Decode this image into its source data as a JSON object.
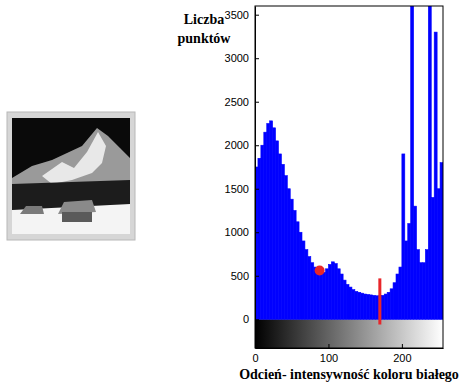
{
  "chart_data": {
    "type": "histogram",
    "xlabel": "Odcień- intensywność koloru białego",
    "ylabel": [
      "Liczba",
      "punktów"
    ],
    "color": "#0000ff",
    "bins": [
      0,
      4,
      8,
      12,
      16,
      20,
      24,
      28,
      32,
      36,
      40,
      44,
      48,
      52,
      56,
      60,
      64,
      68,
      72,
      76,
      80,
      84,
      88,
      92,
      96,
      100,
      104,
      108,
      112,
      116,
      120,
      124,
      128,
      132,
      136,
      140,
      144,
      148,
      152,
      156,
      160,
      164,
      168,
      172,
      176,
      180,
      184,
      188,
      192,
      196,
      200,
      204,
      208,
      212,
      216,
      220,
      224,
      228,
      232,
      236,
      240,
      244,
      248,
      252,
      256
    ],
    "values": [
      1750,
      1850,
      2000,
      2150,
      2250,
      2280,
      2200,
      2050,
      1900,
      1780,
      1650,
      1500,
      1380,
      1250,
      1120,
      1000,
      900,
      800,
      720,
      650,
      600,
      560,
      530,
      540,
      580,
      630,
      660,
      640,
      580,
      520,
      450,
      400,
      370,
      340,
      320,
      310,
      300,
      290,
      285,
      280,
      275,
      270,
      270,
      275,
      290,
      310,
      350,
      420,
      520,
      600,
      1900,
      900,
      1100,
      3600,
      1300,
      800,
      650,
      650,
      800,
      3600,
      1400,
      3300,
      1500,
      1800
    ],
    "xlim": [
      0,
      256
    ],
    "ylim": [
      -330,
      3600
    ],
    "xticks": [
      0,
      100,
      200
    ],
    "yticks": [
      0,
      500,
      1000,
      1500,
      2000,
      2500,
      3000,
      3500
    ],
    "point": {
      "x": 88,
      "y": 560,
      "color": "#e8262a"
    },
    "threshold": {
      "x": 170,
      "y": [
        -60,
        470
      ],
      "color": "#e8262a"
    }
  }
}
